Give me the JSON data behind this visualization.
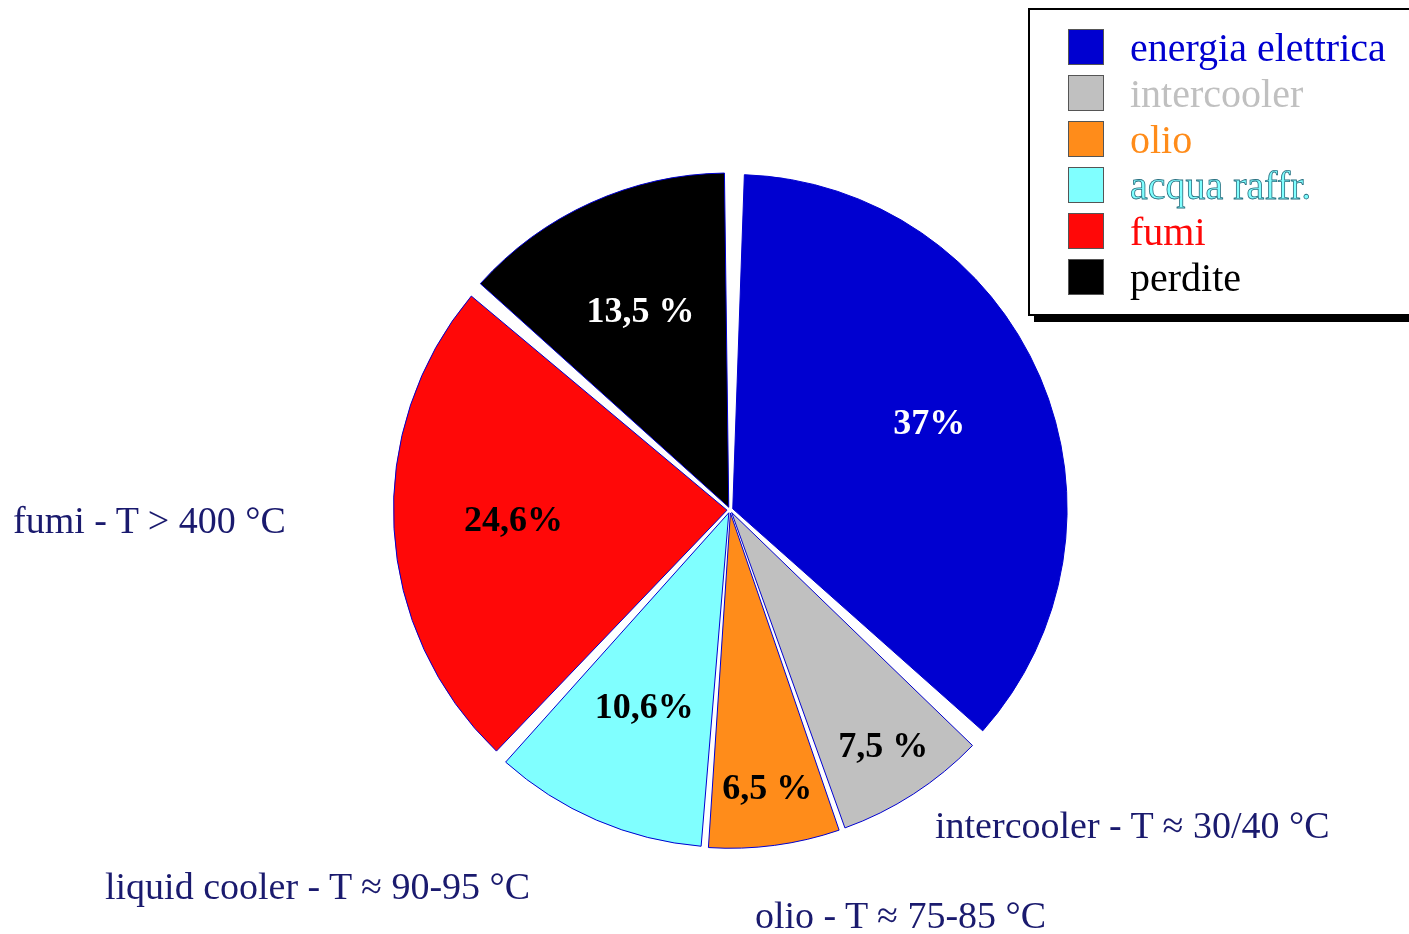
{
  "chart_data": {
    "type": "pie",
    "categories": [
      "energia elettrica",
      "intercooler",
      "olio",
      "acqua raffr.",
      "fumi",
      "perdite"
    ],
    "values": [
      37,
      7.5,
      6.5,
      10.6,
      24.6,
      13.5
    ],
    "colors": [
      "#0000d0",
      "#c0c0c0",
      "#ff8c1a",
      "#80ffff",
      "#ff0808",
      "#000000"
    ],
    "value_labels": [
      "37%",
      "7,5 %",
      "6,5 %",
      "10,6%",
      "24,6%",
      "13,5 %"
    ],
    "legend": "top right",
    "annotations": [
      "fumi - T > 400 °C",
      "intercooler - T ≈ 30/40 °C",
      "liquid cooler - T ≈ 90-95 °C",
      "olio - T ≈ 75-85 °C"
    ]
  }
}
